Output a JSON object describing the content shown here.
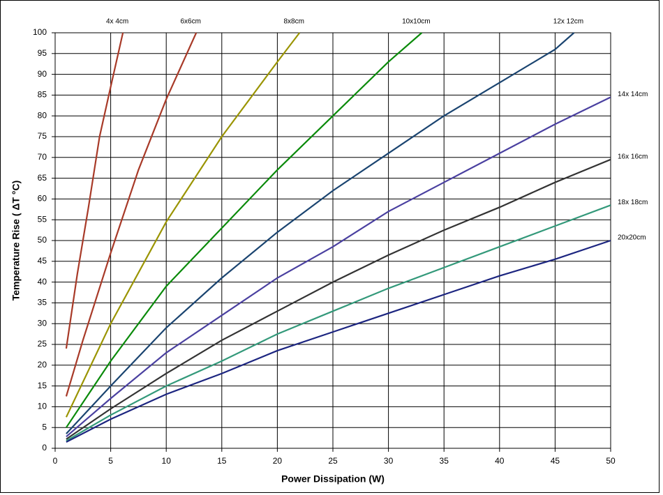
{
  "chart_data": {
    "type": "line",
    "x_label": "Power Dissipation (W)",
    "y_label": "Temperature Rise ( ΔT  °C)",
    "xlim": [
      0,
      50
    ],
    "ylim": [
      0,
      100
    ],
    "xticks": [
      0,
      5,
      10,
      15,
      20,
      25,
      30,
      35,
      40,
      45,
      50
    ],
    "yticks": [
      0,
      5,
      10,
      15,
      20,
      25,
      30,
      35,
      40,
      45,
      50,
      55,
      60,
      65,
      70,
      75,
      80,
      85,
      90,
      95,
      100
    ],
    "grid": true,
    "series": [
      {
        "name": "4x 4cm",
        "color": "#a83a28",
        "x": [
          1,
          2,
          3,
          4,
          5,
          6.1
        ],
        "values": [
          24,
          42,
          58,
          75,
          87,
          100
        ]
      },
      {
        "name": "6x6cm",
        "color": "#a83a28",
        "x": [
          1,
          2.5,
          5,
          7.5,
          10,
          12.7
        ],
        "values": [
          12.5,
          26,
          47,
          67,
          84,
          100
        ]
      },
      {
        "name": "8x8cm",
        "color": "#9a9400",
        "x": [
          1,
          5,
          10,
          15,
          20,
          22
        ],
        "values": [
          7.5,
          30,
          54.5,
          75,
          93,
          100
        ]
      },
      {
        "name": "10x10cm",
        "color": "#0a8a0a",
        "x": [
          1,
          5,
          10,
          15,
          20,
          25,
          30,
          33
        ],
        "values": [
          5,
          21,
          39,
          53,
          67,
          80,
          93,
          100
        ]
      },
      {
        "name": "12x 12cm",
        "color": "#1a4470",
        "x": [
          1,
          5,
          10,
          15,
          20,
          25,
          30,
          35,
          40,
          45,
          46.7
        ],
        "values": [
          3.5,
          15,
          29,
          41,
          52,
          62,
          71,
          80,
          88,
          96,
          100
        ]
      },
      {
        "name": "14x 14cm",
        "color": "#4a40a0",
        "x": [
          1,
          5,
          10,
          15,
          20,
          25,
          30,
          35,
          40,
          45,
          50
        ],
        "values": [
          2.8,
          12,
          23,
          32,
          41,
          48.5,
          57,
          64,
          71,
          78,
          84.5
        ]
      },
      {
        "name": "16x 16cm",
        "color": "#333333",
        "x": [
          1,
          5,
          10,
          15,
          20,
          25,
          30,
          35,
          40,
          45,
          50
        ],
        "values": [
          2.2,
          9.5,
          18,
          26,
          33,
          40,
          46.5,
          52.5,
          58,
          64,
          69.5
        ]
      },
      {
        "name": "18x 18cm",
        "color": "#33997a",
        "x": [
          1,
          5,
          10,
          15,
          20,
          25,
          30,
          35,
          40,
          45,
          50
        ],
        "values": [
          1.8,
          8,
          15,
          21,
          27.5,
          33,
          38.5,
          43.5,
          48.5,
          53.5,
          58.5
        ]
      },
      {
        "name": "20x20cm",
        "color": "#1c2580",
        "x": [
          1,
          5,
          10,
          15,
          20,
          25,
          30,
          35,
          40,
          45,
          50
        ],
        "values": [
          1.5,
          7,
          13,
          18,
          23.5,
          28,
          32.5,
          37,
          41.5,
          45.5,
          50
        ]
      }
    ]
  }
}
